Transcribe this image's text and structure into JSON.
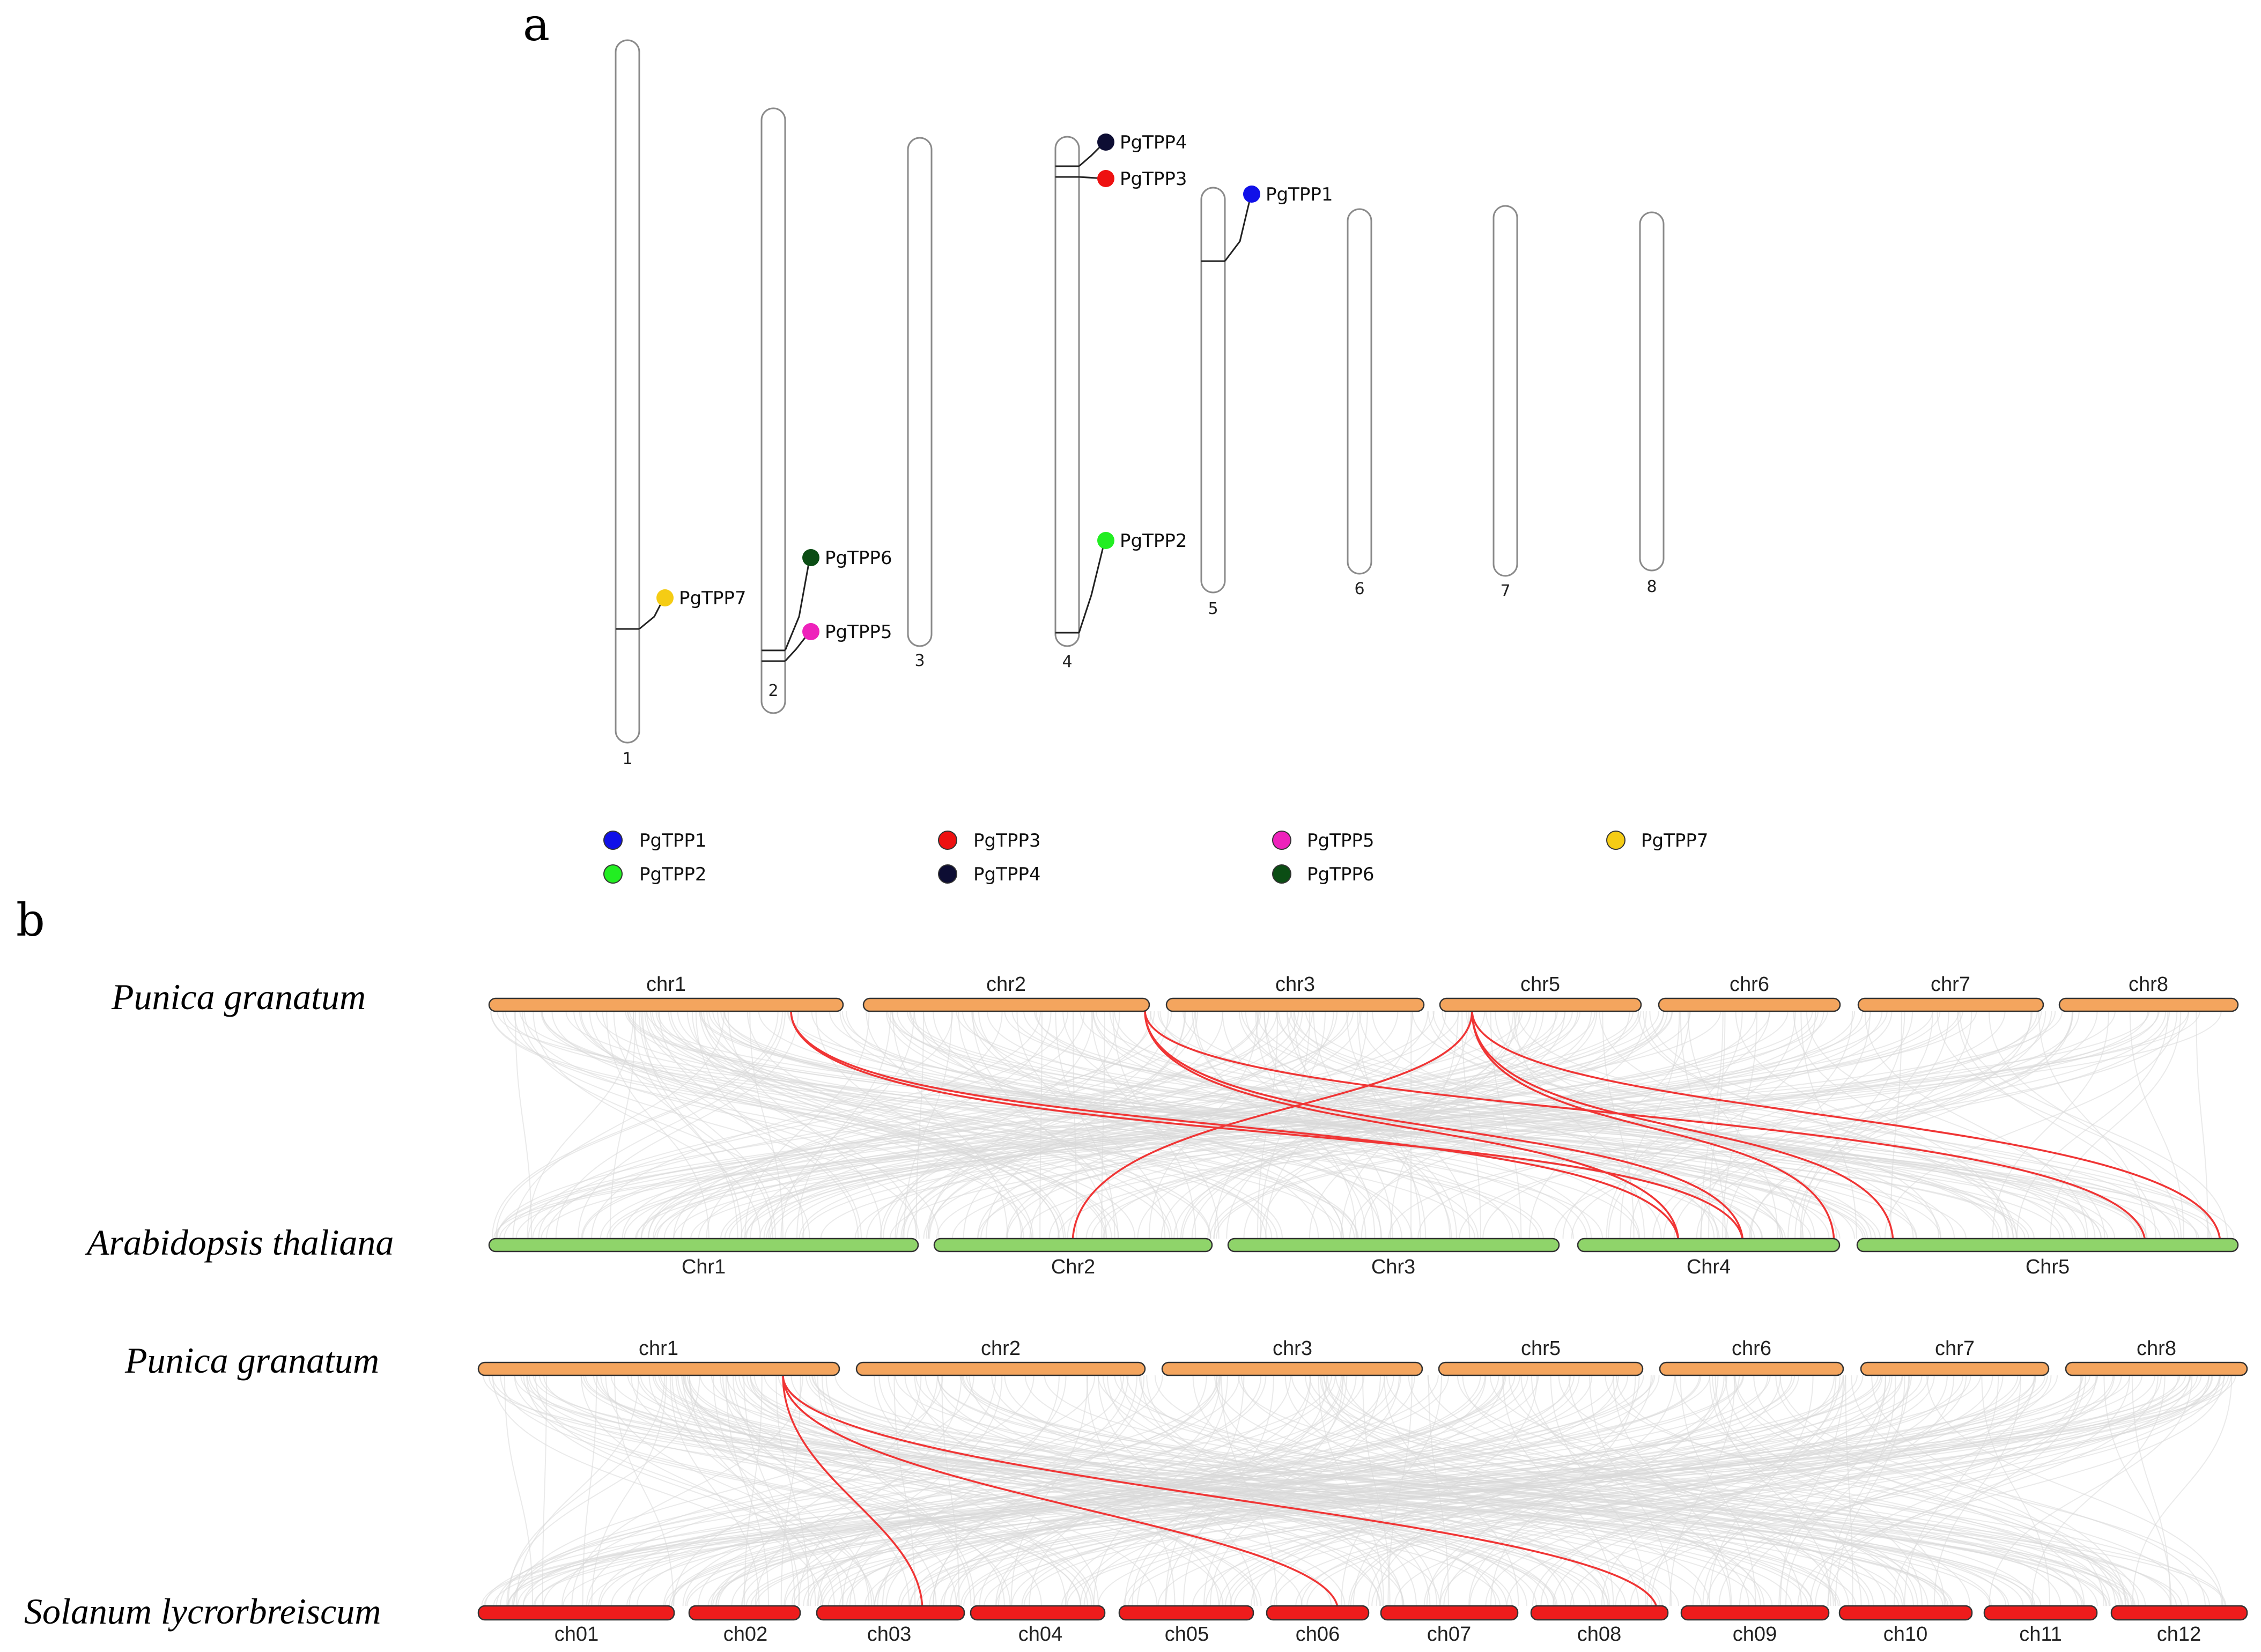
{
  "panel_a": {
    "letter": "a",
    "chromosomes": [
      {
        "label": "1",
        "top": 0,
        "bottom": 1.0
      },
      {
        "label": "2",
        "top": 0.097,
        "bottom": 0.955
      },
      {
        "label": "3",
        "top": 0.139,
        "bottom": 0.861
      },
      {
        "label": "4",
        "top": 0.137,
        "bottom": 0.861
      },
      {
        "label": "5",
        "top": 0.209,
        "bottom": 0.782
      },
      {
        "label": "6",
        "top": 0.239,
        "bottom": 0.75
      },
      {
        "label": "7",
        "top": 0.235,
        "bottom": 0.75
      },
      {
        "label": "8",
        "top": 0.243,
        "bottom": 0.749
      }
    ],
    "genes": [
      {
        "name": "PgTPP4",
        "chromosome": "4",
        "position": 0.179,
        "color": "#0d0d33"
      },
      {
        "name": "PgTPP3",
        "chromosome": "4",
        "position": 0.195,
        "color": "#ee1111"
      },
      {
        "name": "PgTPP1",
        "chromosome": "5",
        "position": 0.31,
        "color": "#1010e8"
      },
      {
        "name": "PgTPP6",
        "chromosome": "2",
        "position": 0.869,
        "color": "#0b4d14"
      },
      {
        "name": "PgTPP2",
        "chromosome": "4",
        "position": 0.843,
        "color": "#22ee22"
      },
      {
        "name": "PgTPP7",
        "chromosome": "1",
        "position": 0.838,
        "color": "#f5cc14"
      },
      {
        "name": "PgTPP5",
        "chromosome": "2",
        "position": 0.885,
        "color": "#ee22bb"
      }
    ],
    "legend": [
      {
        "name": "PgTPP1",
        "color": "#1010e8"
      },
      {
        "name": "PgTPP2",
        "color": "#22ee22"
      },
      {
        "name": "PgTPP3",
        "color": "#ee1111"
      },
      {
        "name": "PgTPP4",
        "color": "#0d0d33"
      },
      {
        "name": "PgTPP5",
        "color": "#ee22bb"
      },
      {
        "name": "PgTPP6",
        "color": "#0b4d14"
      },
      {
        "name": "PgTPP7",
        "color": "#f5cc14"
      }
    ]
  },
  "panel_b": {
    "letter": "b",
    "synteny_1": {
      "top_species": "Punica granatum",
      "bottom_species": "Arabidopsis thaliana",
      "top_chromosomes": [
        "chr1",
        "chr2",
        "chr3",
        "chr5",
        "chr6",
        "chr7",
        "chr8"
      ],
      "bottom_chromosomes": [
        "Chr1",
        "Chr2",
        "Chr3",
        "Chr4",
        "Chr5"
      ],
      "top_color": "#f4a55e",
      "bottom_color": "#8fd46a"
    },
    "synteny_2": {
      "top_species": "Punica granatum",
      "bottom_species": "Solanum lycrorbreiscum",
      "top_chromosomes": [
        "chr1",
        "chr2",
        "chr3",
        "chr5",
        "chr6",
        "chr7",
        "chr8"
      ],
      "bottom_chromosomes": [
        "ch01",
        "ch02",
        "ch03",
        "ch04",
        "ch05",
        "ch06",
        "ch07",
        "ch08",
        "ch09",
        "ch10",
        "ch11",
        "ch12"
      ],
      "top_color": "#f4a55e",
      "bottom_color": "#ee1c1c"
    },
    "background_link_color": "#d9d9d9",
    "highlight_link_color": "#f03535"
  }
}
